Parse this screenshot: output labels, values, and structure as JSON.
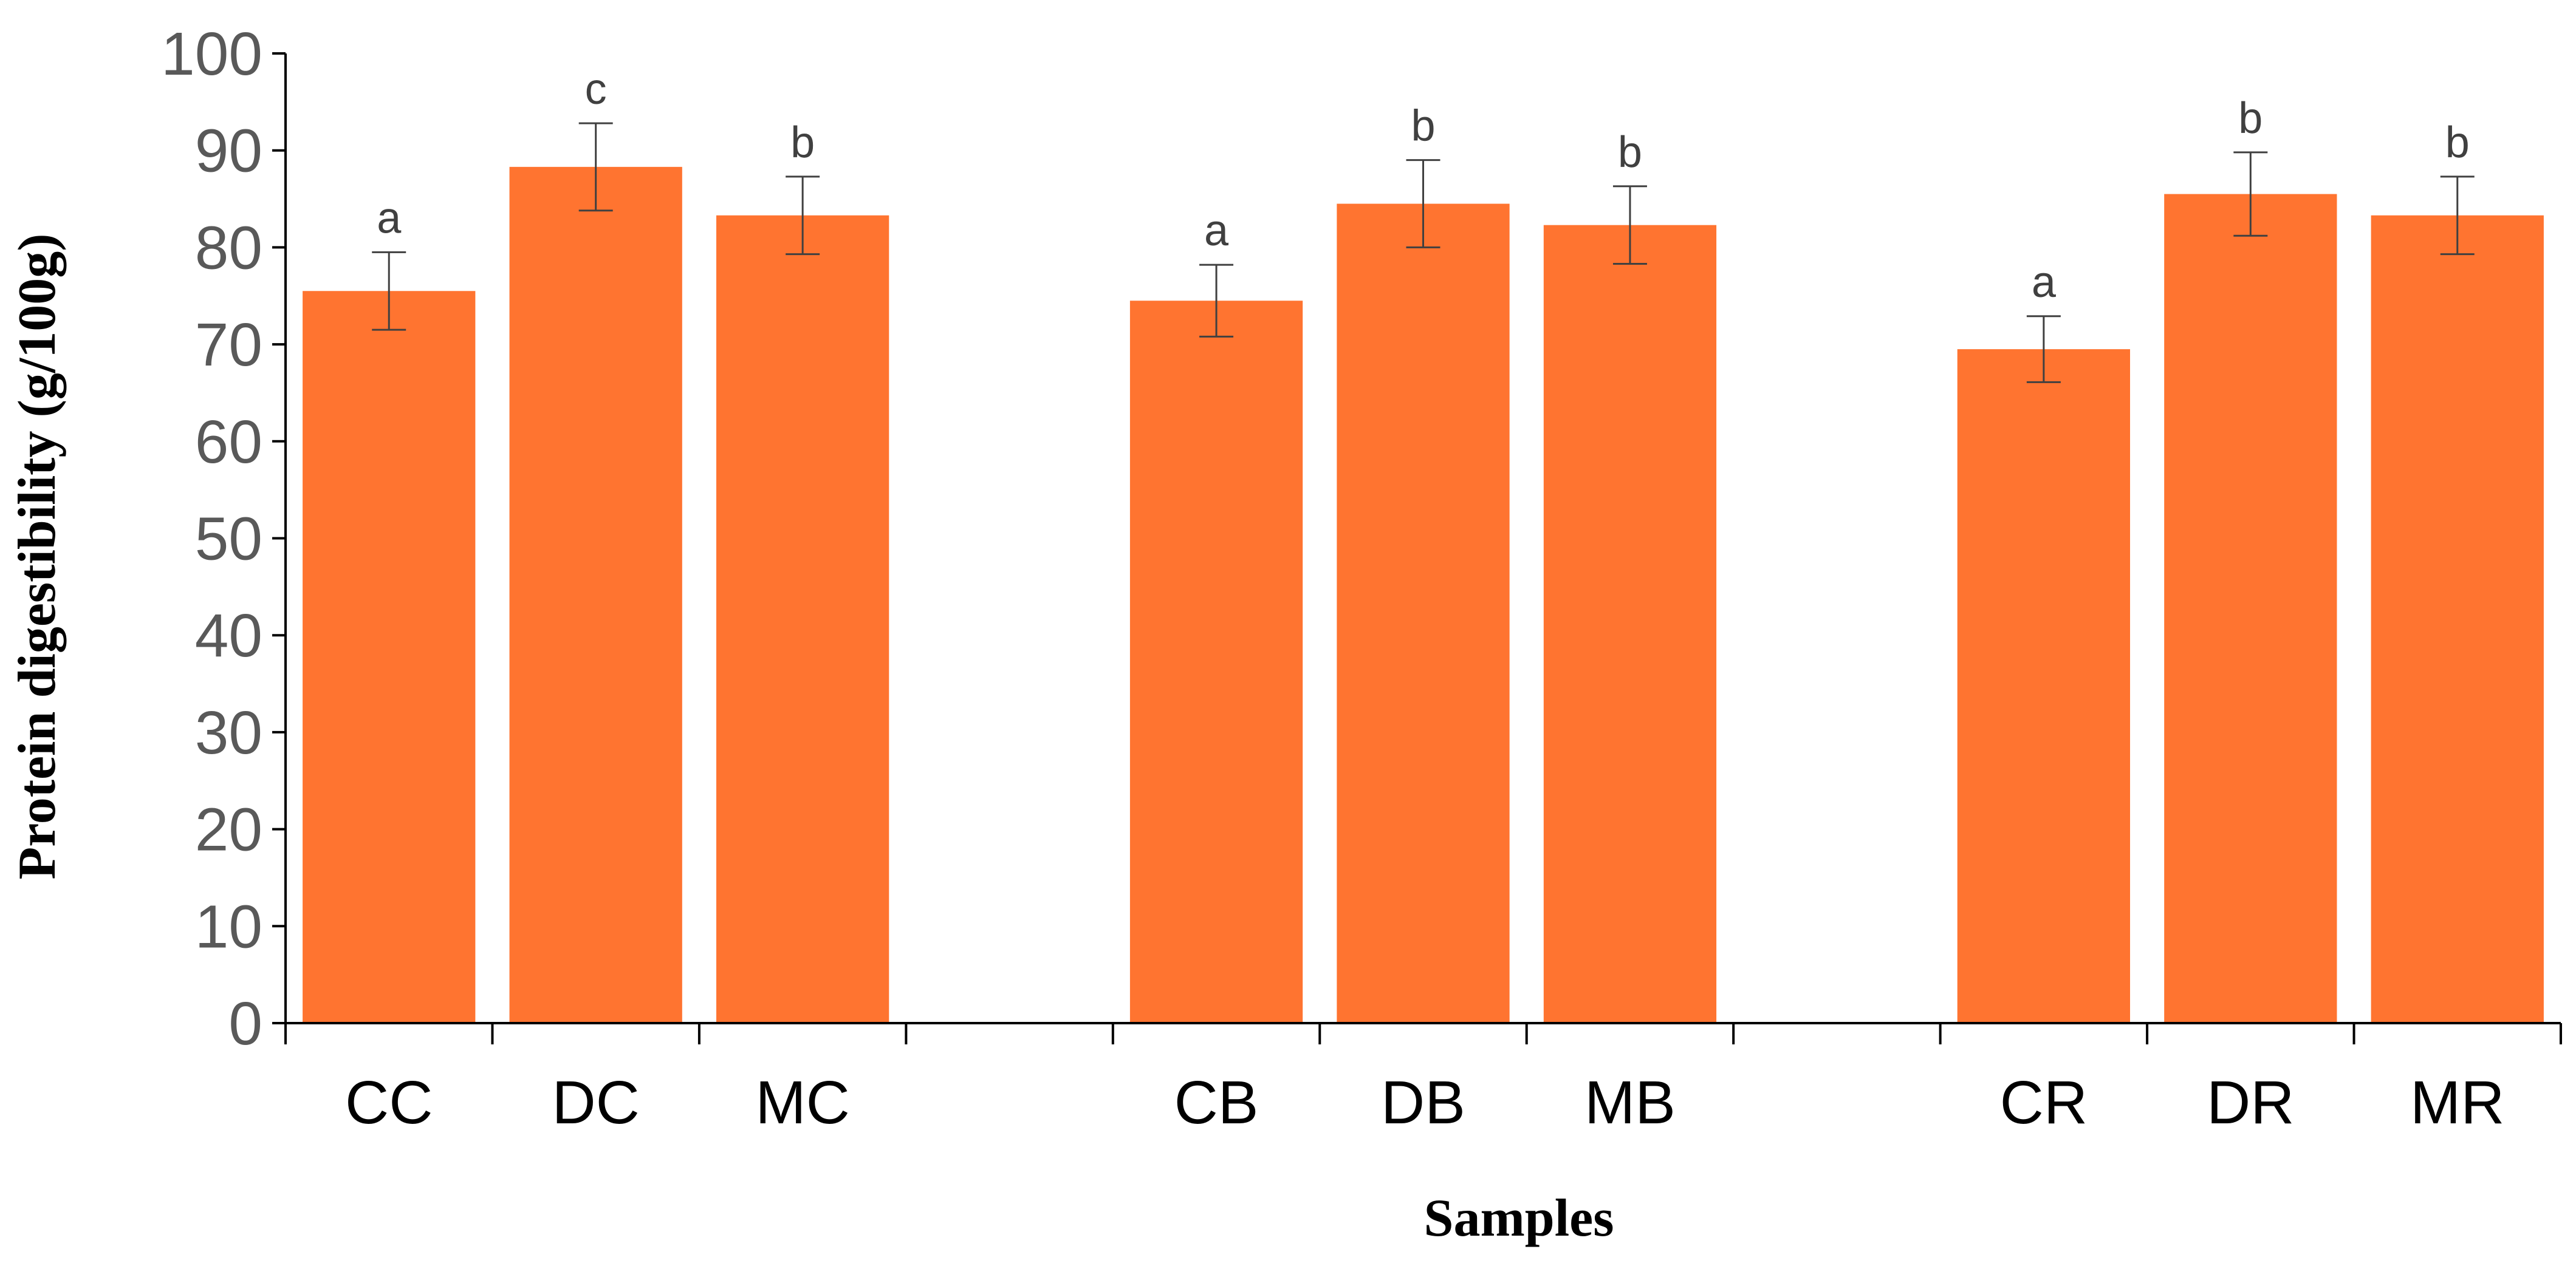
{
  "chart_data": {
    "type": "bar",
    "title": "",
    "xlabel": "Samples",
    "ylabel": "Protein digestibility (g/100g)",
    "ylim": [
      0,
      100
    ],
    "yticks": [
      0,
      10,
      20,
      30,
      40,
      50,
      60,
      70,
      80,
      90,
      100
    ],
    "grid": false,
    "legend": "none",
    "bar_color": "#FF7430",
    "categories": [
      "CC",
      "DC",
      "MC",
      "CB",
      "DB",
      "MB",
      "CR",
      "DR",
      "MR"
    ],
    "groups": [
      {
        "categories": [
          "CC",
          "DC",
          "MC"
        ]
      },
      {
        "categories": [
          "CB",
          "DB",
          "MB"
        ]
      },
      {
        "categories": [
          "CR",
          "DR",
          "MR"
        ]
      }
    ],
    "values": [
      75.5,
      88.3,
      83.3,
      74.5,
      84.5,
      82.3,
      69.5,
      85.5,
      83.3
    ],
    "errors": [
      4.0,
      4.5,
      4.0,
      3.7,
      4.5,
      4.0,
      3.4,
      4.3,
      4.0
    ],
    "annotations": [
      "a",
      "c",
      "b",
      "a",
      "b",
      "b",
      "a",
      "b",
      "b"
    ]
  }
}
